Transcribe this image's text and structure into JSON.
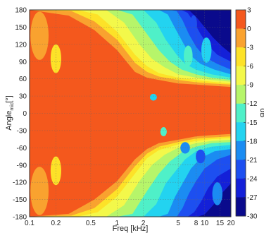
{
  "chart_data": {
    "type": "heatmap",
    "xlabel": "Freq [kHz]",
    "ylabel_main": "Angle",
    "ylabel_sub": "mic",
    "ylabel_unit": "[°]",
    "colorbar_label": "dB",
    "x_scale": "log",
    "xlim": [
      0.1,
      20
    ],
    "ylim": [
      -180,
      180
    ],
    "x_ticks": [
      {
        "v": 0.1,
        "label": "0.1"
      },
      {
        "v": 0.2,
        "label": "0.2"
      },
      {
        "v": 0.5,
        "label": "0.5"
      },
      {
        "v": 1,
        "label": "1"
      },
      {
        "v": 2,
        "label": "2"
      },
      {
        "v": 5,
        "label": "5"
      },
      {
        "v": 8,
        "label": "8"
      },
      {
        "v": 10,
        "label": "10"
      },
      {
        "v": 15,
        "label": "15"
      },
      {
        "v": 20,
        "label": "20"
      }
    ],
    "y_ticks": [
      180,
      150,
      120,
      90,
      60,
      30,
      0,
      -30,
      -60,
      -90,
      -120,
      -150,
      -180
    ],
    "colorbar": {
      "levels": [
        3,
        0,
        -3,
        -6,
        -9,
        -12,
        -15,
        -18,
        -21,
        -24,
        -27,
        -30
      ],
      "colors": [
        "#f4581d",
        "#f9a22f",
        "#fde228",
        "#f3f84a",
        "#b6f56a",
        "#4ff0c8",
        "#23d3f0",
        "#1b8cf2",
        "#1d4ff0",
        "#1420d8",
        "#0a0a8c"
      ]
    },
    "contour_bands": [
      {
        "level": -3,
        "color": "#f9a22f",
        "x": [
          0.1,
          0.28,
          0.55,
          1,
          1.6,
          2.2,
          3,
          5,
          8,
          12,
          20
        ],
        "y_upper": [
          180,
          170,
          145,
          110,
          72,
          62,
          58,
          52,
          50,
          48,
          46
        ],
        "y_lower": [
          -180,
          -175,
          -150,
          -118,
          -80,
          -62,
          -52,
          -46,
          -40,
          -38,
          -36
        ]
      },
      {
        "level": -6,
        "color": "#fde228",
        "x": [
          0.1,
          0.3,
          0.55,
          1,
          1.6,
          2.2,
          3,
          5,
          8,
          12,
          20
        ],
        "y_upper": [
          180,
          178,
          160,
          128,
          88,
          72,
          64,
          58,
          54,
          52,
          50
        ],
        "y_lower": [
          -180,
          -178,
          -165,
          -132,
          -92,
          -70,
          -58,
          -50,
          -44,
          -42,
          -40
        ]
      },
      {
        "level": -9,
        "color": "#f3f84a",
        "x": [
          0.1,
          0.35,
          0.6,
          1,
          1.6,
          2.2,
          3,
          5,
          8,
          12,
          20
        ],
        "y_upper": [
          180,
          180,
          172,
          142,
          102,
          82,
          70,
          62,
          58,
          55,
          52
        ],
        "y_lower": [
          -180,
          -180,
          -172,
          -145,
          -105,
          -78,
          -64,
          -54,
          -48,
          -45,
          -43
        ]
      },
      {
        "level": -12,
        "color": "#b6f56a",
        "x": [
          0.1,
          0.45,
          0.75,
          1.2,
          1.8,
          2.5,
          3.5,
          5,
          8,
          12,
          20
        ],
        "y_upper": [
          180,
          180,
          180,
          158,
          120,
          95,
          80,
          68,
          62,
          58,
          55
        ],
        "y_lower": [
          -180,
          -180,
          -180,
          -160,
          -118,
          -90,
          -72,
          -60,
          -52,
          -48,
          -46
        ]
      },
      {
        "level": -15,
        "color": "#4ff0c8",
        "x": [
          0.1,
          0.6,
          1,
          1.5,
          2.2,
          3,
          4,
          5.5,
          8,
          12,
          20
        ],
        "y_upper": [
          180,
          180,
          180,
          172,
          138,
          110,
          90,
          76,
          68,
          62,
          58
        ],
        "y_lower": [
          -180,
          -180,
          -180,
          -175,
          -135,
          -105,
          -84,
          -68,
          -58,
          -52,
          -50
        ]
      },
      {
        "level": -18,
        "color": "#23d3f0",
        "x": [
          0.1,
          0.9,
          1.4,
          2,
          2.8,
          3.6,
          4.8,
          6,
          8,
          12,
          20
        ],
        "y_upper": [
          180,
          180,
          180,
          180,
          158,
          128,
          102,
          86,
          76,
          68,
          62
        ],
        "y_lower": [
          -180,
          -180,
          -180,
          -180,
          -158,
          -122,
          -98,
          -80,
          -66,
          -58,
          -55
        ]
      },
      {
        "level": -21,
        "color": "#1b8cf2",
        "x": [
          0.1,
          1.4,
          2.2,
          3,
          3.8,
          4.6,
          5.8,
          7,
          9,
          13,
          20
        ],
        "y_upper": [
          180,
          180,
          180,
          180,
          172,
          148,
          120,
          100,
          86,
          76,
          68
        ],
        "y_lower": [
          -180,
          -180,
          -180,
          -180,
          -175,
          -145,
          -118,
          -96,
          -78,
          -66,
          -62
        ]
      },
      {
        "level": -24,
        "color": "#1d4ff0",
        "x": [
          0.1,
          2.2,
          3.2,
          4,
          4.8,
          5.6,
          6.6,
          8,
          10,
          14,
          20
        ],
        "y_upper": [
          180,
          180,
          180,
          180,
          178,
          162,
          138,
          116,
          98,
          86,
          76
        ],
        "y_lower": [
          -180,
          -180,
          -180,
          -180,
          -180,
          -165,
          -140,
          -118,
          -96,
          -80,
          -72
        ]
      },
      {
        "level": -27,
        "color": "#1420d8",
        "x": [
          0.1,
          3.2,
          4.4,
          5.4,
          6.4,
          7.6,
          9,
          11,
          14,
          20
        ],
        "y_upper": [
          180,
          180,
          180,
          180,
          175,
          158,
          138,
          118,
          102,
          90
        ],
        "y_lower": [
          -180,
          -180,
          -180,
          -180,
          -180,
          -172,
          -155,
          -130,
          -110,
          -96
        ]
      },
      {
        "level": -30,
        "color": "#0a0a8c",
        "x": [
          0.1,
          4.4,
          5.6,
          6.8,
          8.2,
          10,
          12.5,
          16,
          20
        ],
        "y_upper": [
          180,
          180,
          180,
          178,
          166,
          150,
          132,
          116,
          104
        ],
        "y_lower": [
          -180,
          -180,
          -180,
          -180,
          -180,
          -176,
          -160,
          -138,
          -122
        ]
      }
    ],
    "blobs": [
      {
        "x": 0.13,
        "y": 135,
        "rx": 0.035,
        "ry": 42,
        "color": "#f9a22f"
      },
      {
        "x": 0.13,
        "y": -135,
        "rx": 0.035,
        "ry": 42,
        "color": "#f9a22f"
      },
      {
        "x": 0.2,
        "y": 95,
        "rx": 0.03,
        "ry": 25,
        "color": "#fde228"
      },
      {
        "x": 0.2,
        "y": -100,
        "rx": 0.03,
        "ry": 25,
        "color": "#fde228"
      },
      {
        "x": 2.6,
        "y": 28,
        "rx": 0.25,
        "ry": 6,
        "color": "#23d3f0"
      },
      {
        "x": 3.4,
        "y": -32,
        "rx": 0.3,
        "ry": 8,
        "color": "#4ff0c8"
      },
      {
        "x": 6,
        "y": -60,
        "rx": 0.8,
        "ry": 10,
        "color": "#1b8cf2"
      },
      {
        "x": 9,
        "y": -75,
        "rx": 1.2,
        "ry": 12,
        "color": "#1d4ff0"
      },
      {
        "x": 6.5,
        "y": 100,
        "rx": 0.8,
        "ry": 18,
        "color": "#4ff0c8"
      },
      {
        "x": 10.5,
        "y": 110,
        "rx": 1.5,
        "ry": 22,
        "color": "#23d3f0"
      },
      {
        "x": 14,
        "y": -140,
        "rx": 2,
        "ry": 20,
        "color": "#1b8cf2"
      },
      {
        "x": 7.5,
        "y": 155,
        "rx": 0.7,
        "ry": 16,
        "color": "#1d4ff0"
      }
    ]
  }
}
